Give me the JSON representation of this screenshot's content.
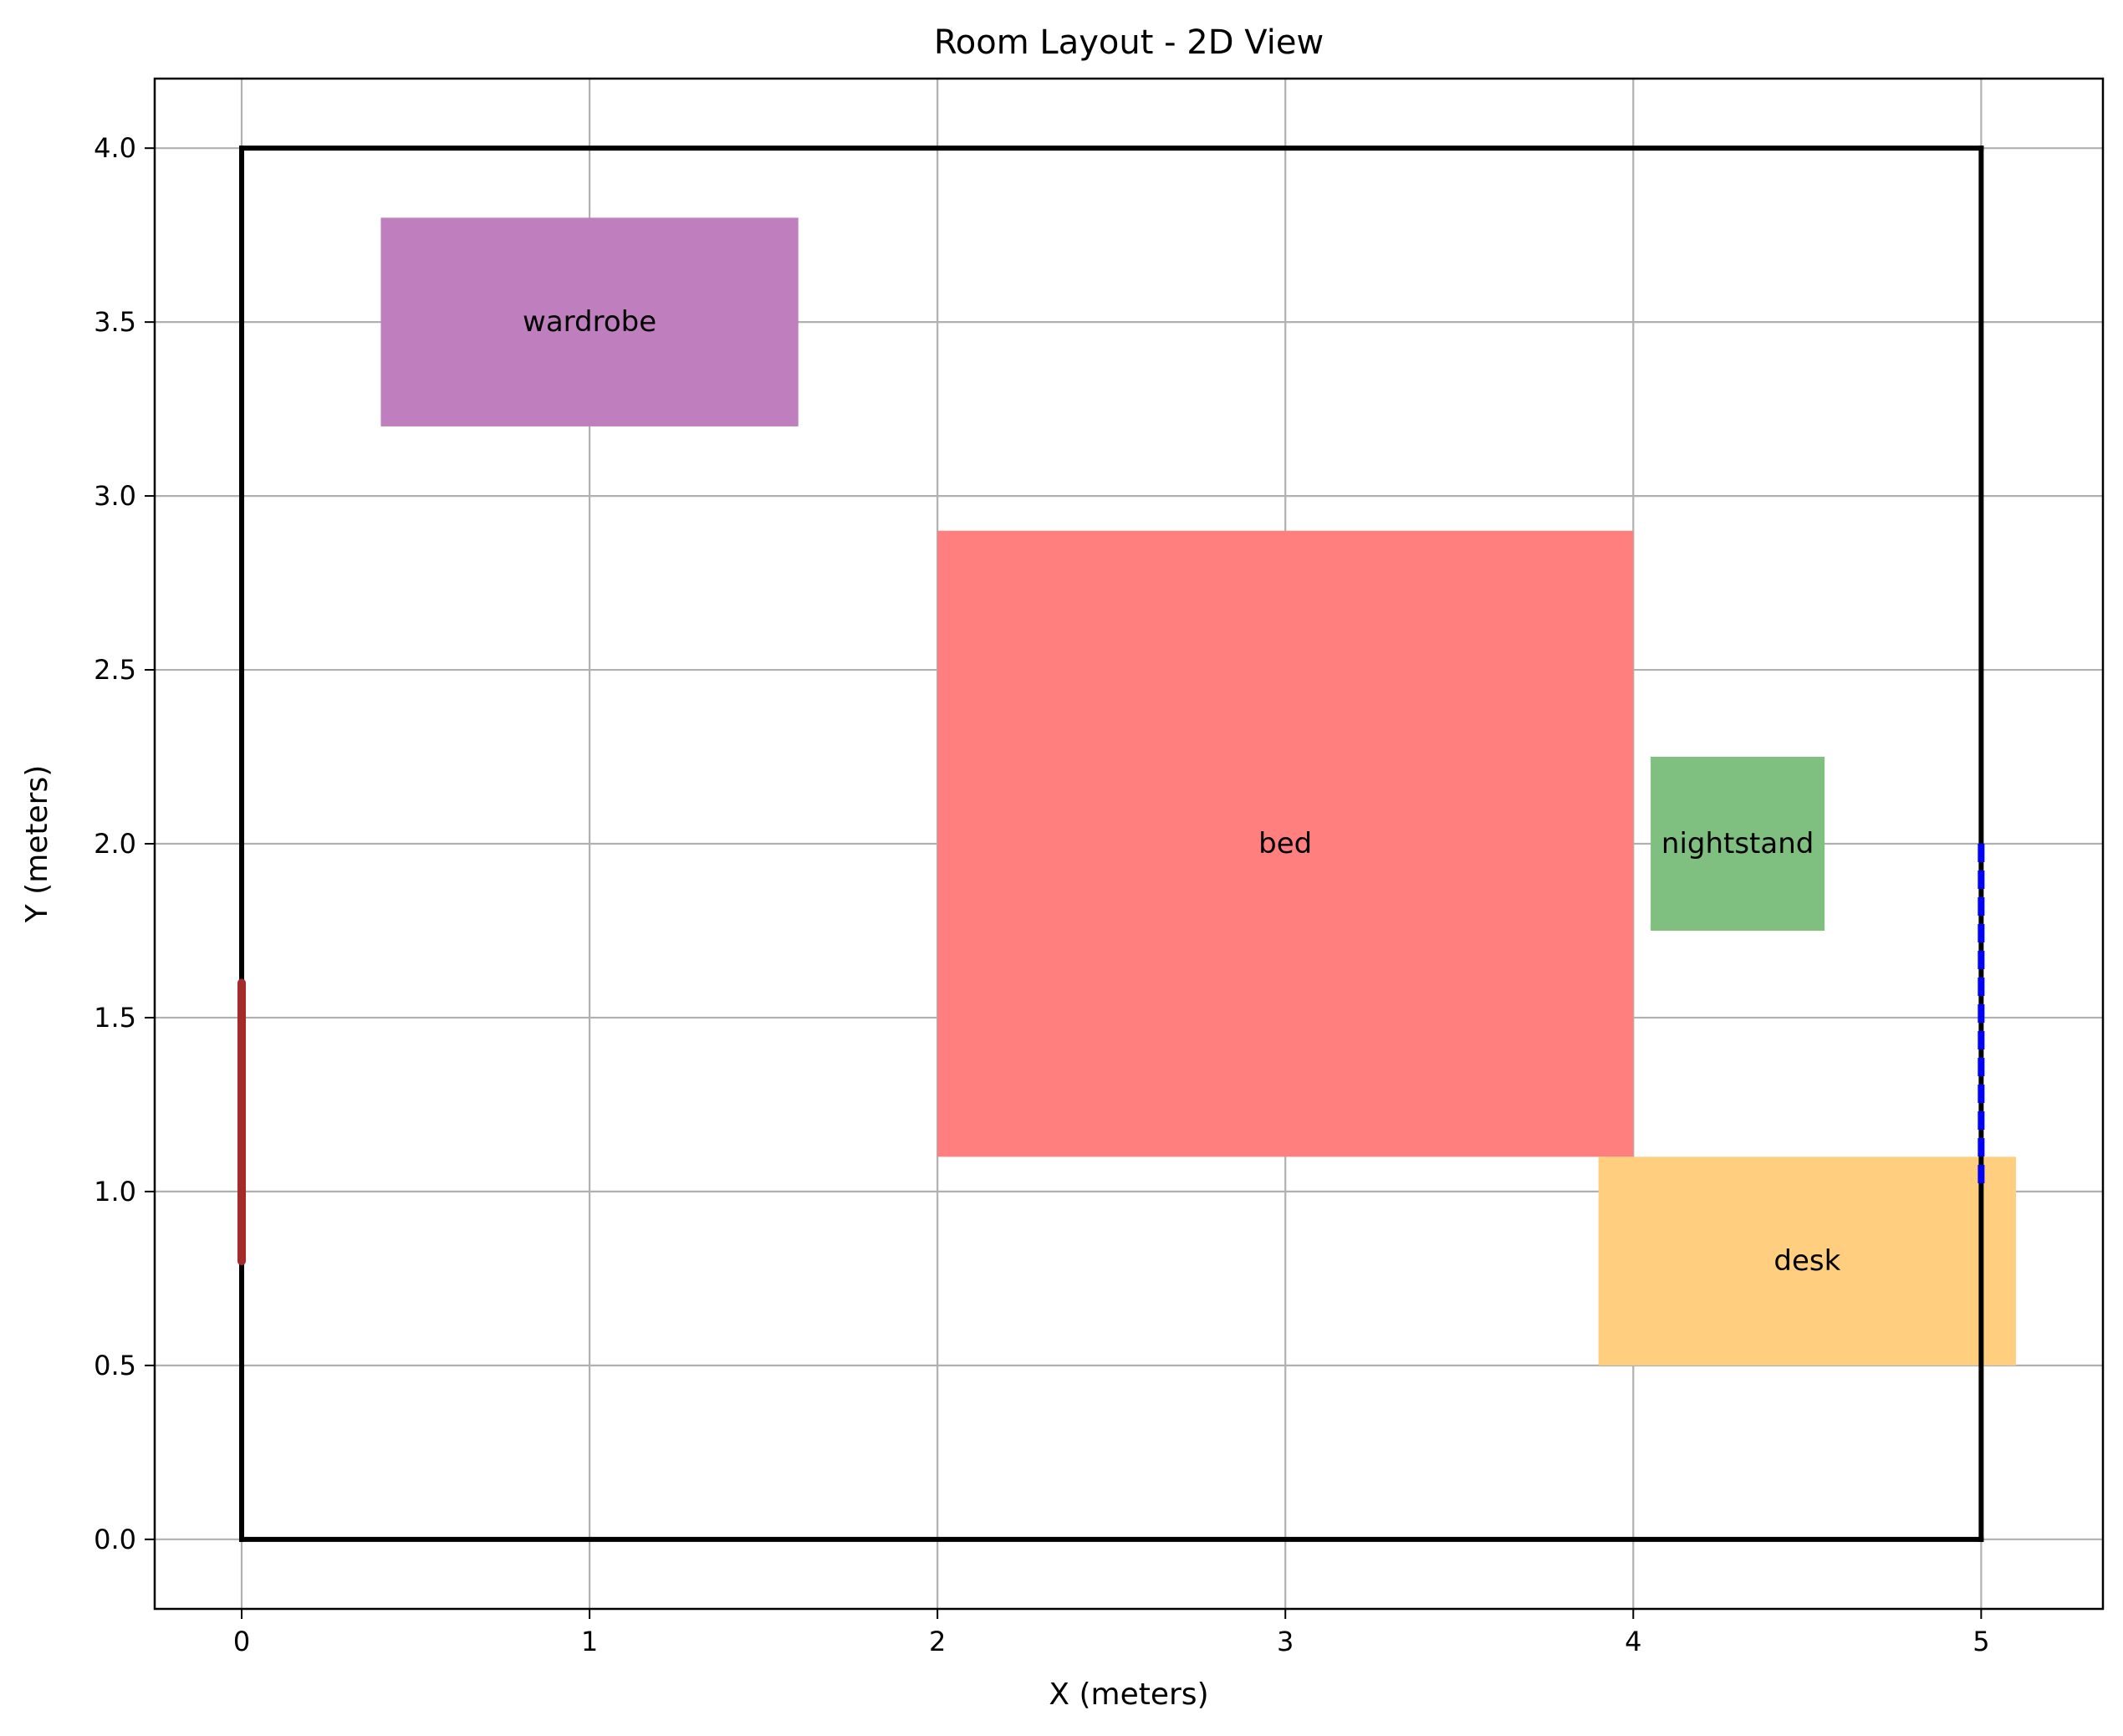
{
  "chart_data": {
    "type": "floor-plan",
    "title": "Room Layout - 2D View",
    "xlabel": "X (meters)",
    "ylabel": "Y (meters)",
    "xlim": [
      -0.25,
      5.35
    ],
    "ylim": [
      -0.2,
      4.2
    ],
    "grid": true,
    "xticks": [
      0,
      1,
      2,
      3,
      4,
      5
    ],
    "yticks": [
      0.0,
      0.5,
      1.0,
      1.5,
      2.0,
      2.5,
      3.0,
      3.5,
      4.0
    ],
    "xtick_labels": [
      "0",
      "1",
      "2",
      "3",
      "4",
      "5"
    ],
    "ytick_labels": [
      "0.0",
      "0.5",
      "1.0",
      "1.5",
      "2.0",
      "2.5",
      "3.0",
      "3.5",
      "4.0"
    ],
    "room": {
      "x": 0,
      "y": 0,
      "width": 5,
      "height": 4,
      "color": "#000000"
    },
    "furniture": [
      {
        "label": "wardrobe",
        "x": 0.4,
        "y": 3.2,
        "width": 1.2,
        "height": 0.6,
        "color": "#bf7fbf"
      },
      {
        "label": "bed",
        "x": 2.0,
        "y": 1.1,
        "width": 2.0,
        "height": 1.8,
        "color": "#ff7f7f"
      },
      {
        "label": "nightstand",
        "x": 4.05,
        "y": 1.75,
        "width": 0.5,
        "height": 0.5,
        "color": "#7fbf7f"
      },
      {
        "label": "desk",
        "x": 3.9,
        "y": 0.5,
        "width": 1.2,
        "height": 0.6,
        "color": "#ffcf7f"
      }
    ],
    "door": {
      "x": 0,
      "y_start": 0.8,
      "y_end": 1.6,
      "color": "#a52a2a"
    },
    "window": {
      "x": 5,
      "y_start": 1.0,
      "y_end": 2.0,
      "color": "#0000ff"
    }
  }
}
